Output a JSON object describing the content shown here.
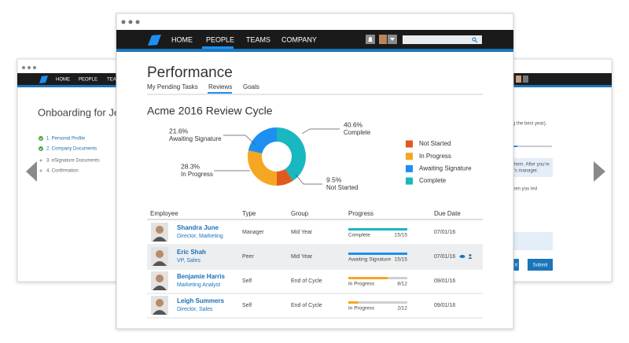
{
  "left_window": {
    "nav": [
      "HOME",
      "PEOPLE",
      "TEA"
    ],
    "title": "Onboarding for Je",
    "steps": [
      "1. Personal Profile",
      "2. Company Documents",
      "3. eSignature Documents",
      "4. Confirmation"
    ]
  },
  "right_window": {
    "lines": [
      "g the best year).",
      "them. After you're",
      "t's manager.",
      "hen you led"
    ],
    "buttons": [
      "it",
      "Submit"
    ]
  },
  "main": {
    "nav": [
      "HOME",
      "PEOPLE",
      "TEAMS",
      "COMPANY"
    ],
    "title": "Performance",
    "tabs": [
      "My Pending Tasks",
      "Reviews",
      "Goals"
    ]
  },
  "chart_data": {
    "type": "pie",
    "title": "Acme 2016 Review Cycle",
    "categories": [
      "Not Started",
      "In Progress",
      "Awaiting Signature",
      "Complete"
    ],
    "values": [
      9.5,
      28.3,
      21.6,
      40.6
    ],
    "value_labels": [
      "9.5%",
      "28.3%",
      "21.6%",
      "40.6%"
    ],
    "colors": [
      "#e05a1e",
      "#f5a623",
      "#1d8ff0",
      "#19b7bf"
    ],
    "donut": true
  },
  "table": {
    "columns": [
      "Employee",
      "Type",
      "Group",
      "Progress",
      "Due Date"
    ],
    "rows": [
      {
        "name": "Shandra June",
        "role": "Director, Marketing",
        "type": "Manager",
        "group": "Mid Year",
        "status": "Complete",
        "progress": "15/15",
        "due": "07/01/16"
      },
      {
        "name": "Eric Shah",
        "role": "VP, Sales",
        "type": "Peer",
        "group": "Mid Year",
        "status": "Awaiting Signature",
        "progress": "15/15",
        "due": "07/01/16"
      },
      {
        "name": "Benjamie Harris",
        "role": "Marketing Analyst",
        "type": "Self",
        "group": "End of Cycle",
        "status": "In Progress",
        "progress": "8/12",
        "due": "09/01/16"
      },
      {
        "name": "Leigh Summers",
        "role": "Director, Sales",
        "type": "Self",
        "group": "End of Cycle",
        "status": "In Progress",
        "progress": "2/12",
        "due": "09/01/16"
      }
    ]
  }
}
